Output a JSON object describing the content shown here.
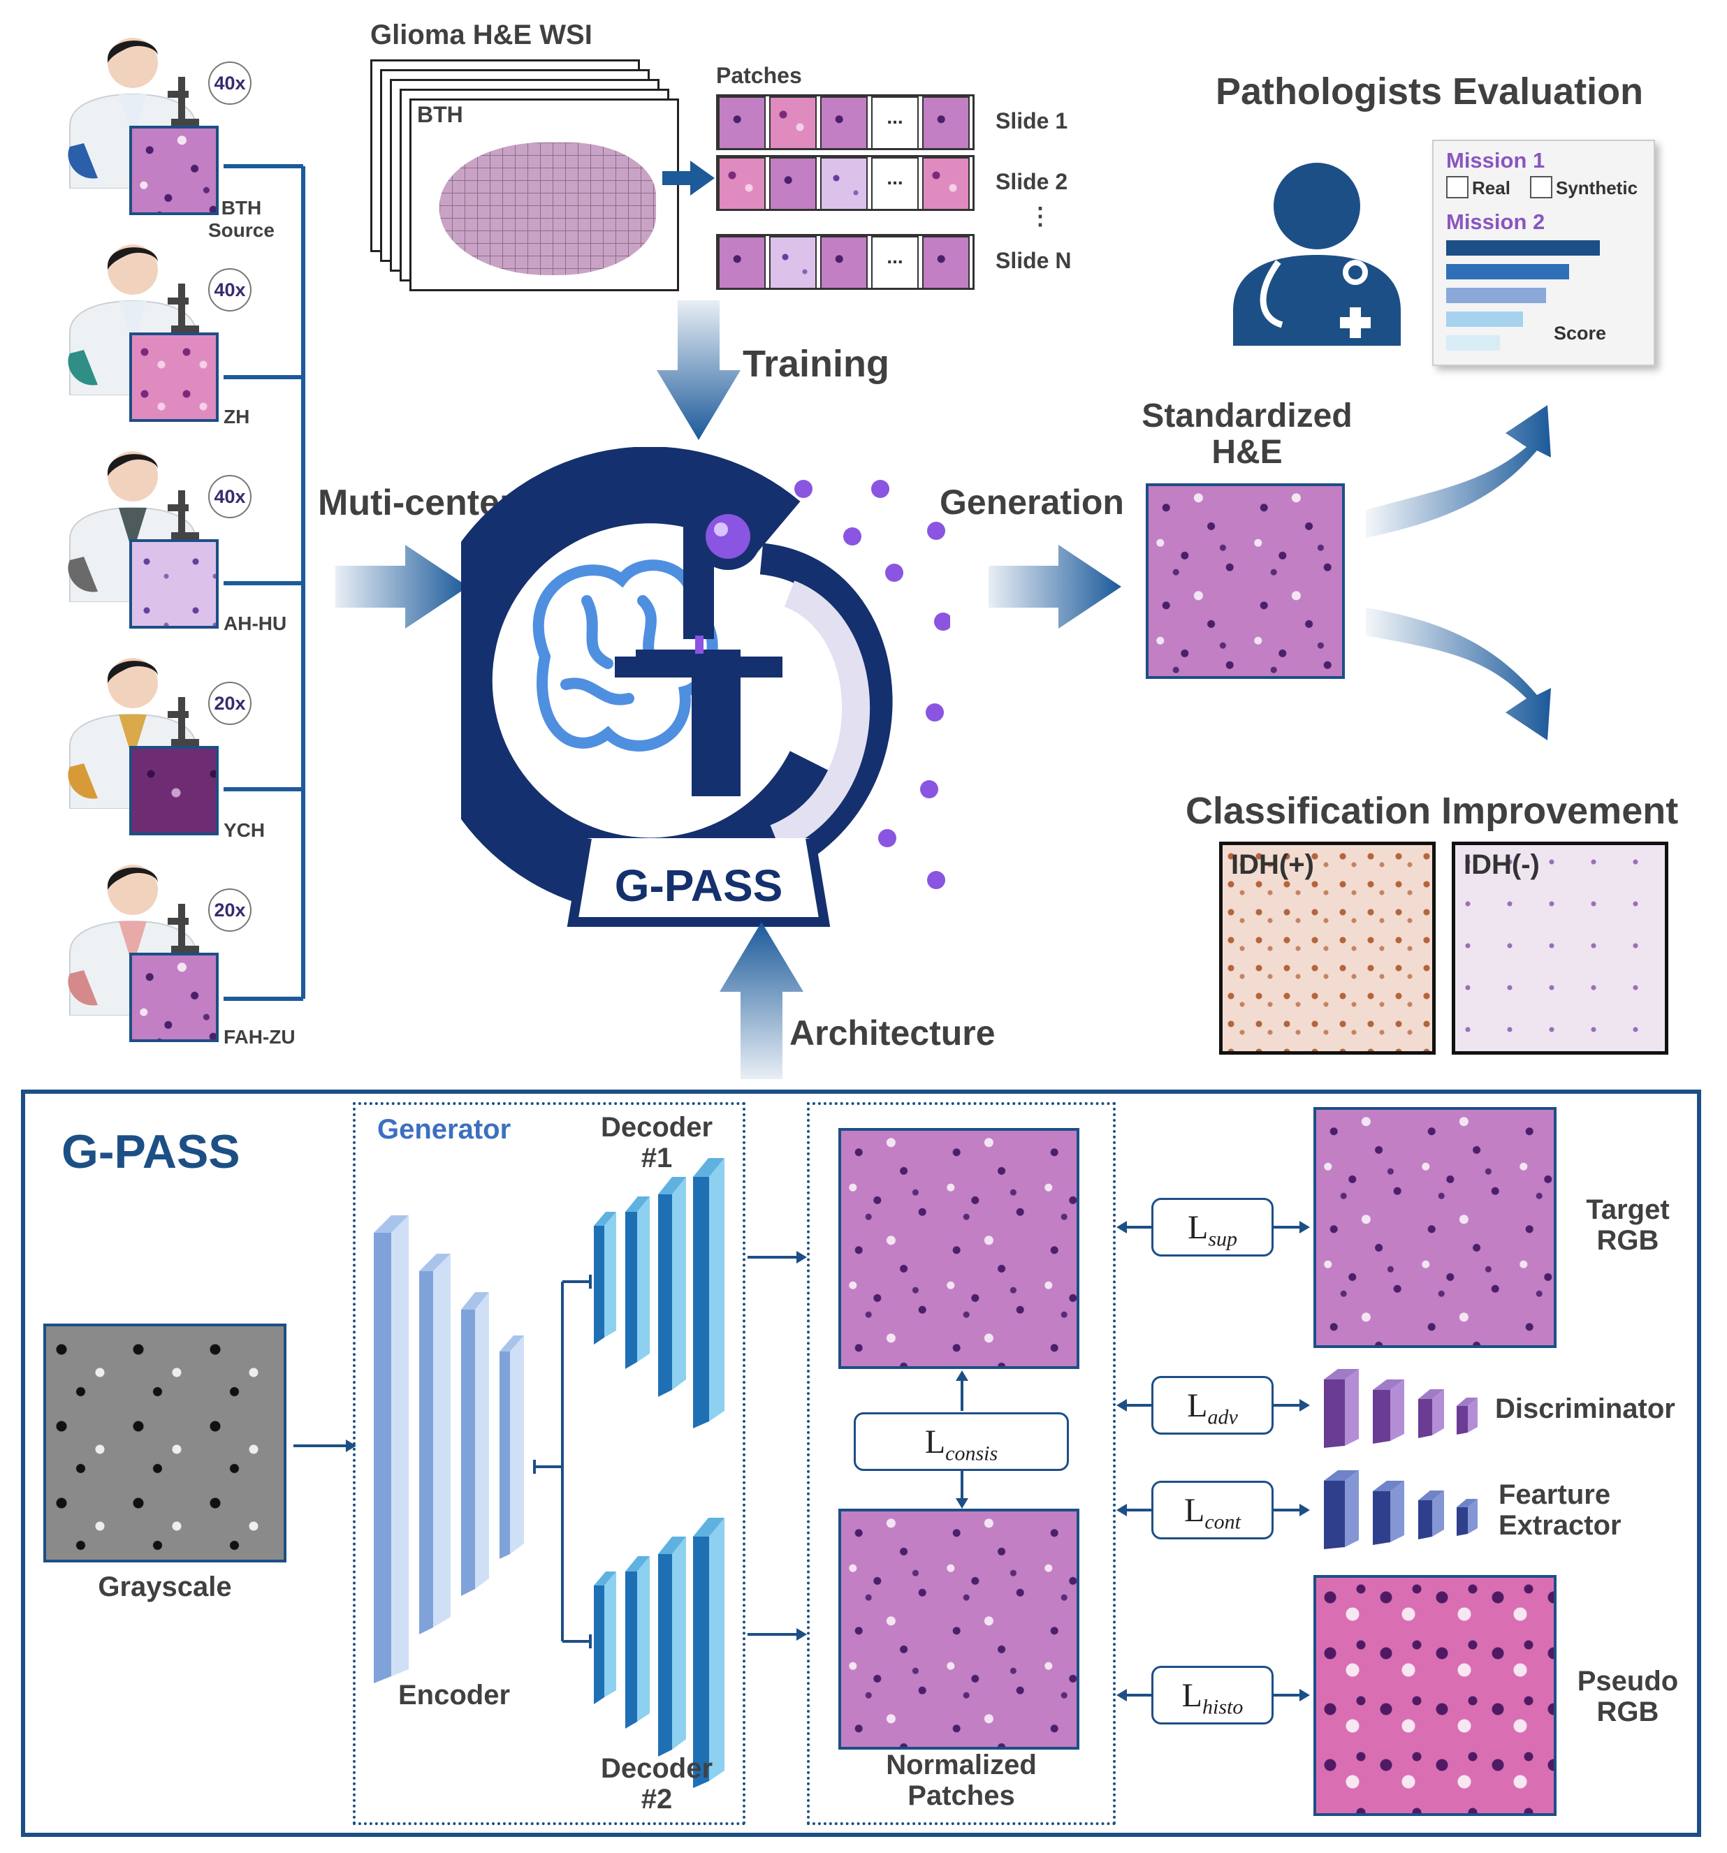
{
  "top": {
    "wsi_title": "Glioma H&E WSI",
    "wsi_label": "BTH",
    "patches_label": "Patches",
    "patch_ellipsis": "...",
    "slides": [
      "Slide 1",
      "Slide 2",
      "Slide N"
    ],
    "slides_vdots": "⋮",
    "training": "Training",
    "multicenter": "Muti-center",
    "generation": "Generation",
    "architecture": "Architecture",
    "model_name": "G-PASS"
  },
  "centers": [
    {
      "mag": "40x",
      "label": "BTH\nSource",
      "coat": "#7ab0e0",
      "shirt": "#e8eef6",
      "tint": "#2b5faa"
    },
    {
      "mag": "40x",
      "label": "ZH",
      "coat": "#5aa3a0",
      "shirt": "#e8eef6",
      "tint": "#2f8f87"
    },
    {
      "mag": "40x",
      "label": "AH-HU",
      "coat": "#777777",
      "shirt": "#4d5c5a",
      "tint": "#6a6a6a"
    },
    {
      "mag": "20x",
      "label": "YCH",
      "coat": "#e3b35b",
      "shirt": "#d9a94a",
      "tint": "#d79a38"
    },
    {
      "mag": "20x",
      "label": "FAH-ZU",
      "coat": "#d08080",
      "shirt": "#e9a9a9",
      "tint": "#d48a8a"
    }
  ],
  "right": {
    "eval_title": "Pathologists Evaluation",
    "mission1": "Mission 1",
    "real": "Real",
    "synthetic": "Synthetic",
    "mission2": "Mission 2",
    "score": "Score",
    "score_bars": [
      1.0,
      0.8,
      0.65,
      0.5,
      0.35
    ],
    "standardized": "Standardized\nH&E",
    "classification": "Classification Improvement",
    "idh_pos": "IDH(+)",
    "idh_neg": "IDH(-)"
  },
  "bottom": {
    "title": "G-PASS",
    "generator": "Generator",
    "encoder": "Encoder",
    "decoder1": "Decoder\n#1",
    "decoder2": "Decoder\n#2",
    "grayscale": "Grayscale",
    "normalized": "Normalized\nPatches",
    "target": "Target\nRGB",
    "discriminator": "Discriminator",
    "feature_extractor": "Fearture\nExtractor",
    "pseudo": "Pseudo\nRGB",
    "loss_symbol": "L",
    "loss_sup": "sup",
    "loss_adv": "adv",
    "loss_cont": "cont",
    "loss_histo": "histo",
    "loss_consis": "consis"
  }
}
